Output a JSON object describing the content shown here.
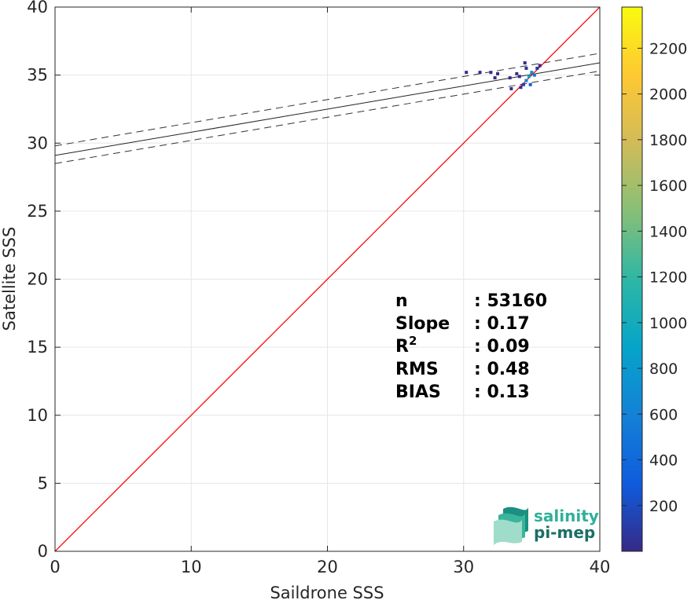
{
  "chart_data": {
    "type": "heatmap",
    "xlabel": "Saildrone SSS",
    "ylabel": "Satellite SSS",
    "xlim": [
      0,
      40
    ],
    "ylim": [
      0,
      40
    ],
    "xticks": [
      "0",
      "10",
      "20",
      "30",
      "40"
    ],
    "yticks": [
      "0",
      "5",
      "10",
      "15",
      "20",
      "25",
      "30",
      "35",
      "40"
    ],
    "grid": true,
    "identity_line": {
      "x": [
        0,
        40
      ],
      "y": [
        0,
        40
      ],
      "color": "#ff0000"
    },
    "regression_line": {
      "x": [
        0,
        40
      ],
      "y": [
        29.1,
        35.9
      ],
      "color": "#222222"
    },
    "confidence_lines": [
      {
        "x": [
          0,
          40
        ],
        "y": [
          29.8,
          36.6
        ]
      },
      {
        "x": [
          0,
          40
        ],
        "y": [
          28.5,
          35.3
        ]
      }
    ],
    "density_points": [
      {
        "x": 34.8,
        "y": 34.9,
        "count": 900
      },
      {
        "x": 35.0,
        "y": 35.2,
        "count": 700
      },
      {
        "x": 34.6,
        "y": 34.6,
        "count": 600
      },
      {
        "x": 35.2,
        "y": 35.0,
        "count": 500
      },
      {
        "x": 34.9,
        "y": 34.3,
        "count": 300
      },
      {
        "x": 34.4,
        "y": 34.3,
        "count": 150
      },
      {
        "x": 34.2,
        "y": 34.1,
        "count": 60
      },
      {
        "x": 35.4,
        "y": 35.5,
        "count": 120
      },
      {
        "x": 34.6,
        "y": 35.5,
        "count": 40
      },
      {
        "x": 34.5,
        "y": 35.9,
        "count": 20
      },
      {
        "x": 34.1,
        "y": 34.9,
        "count": 30
      },
      {
        "x": 33.9,
        "y": 35.1,
        "count": 15
      },
      {
        "x": 35.6,
        "y": 35.7,
        "count": 25
      },
      {
        "x": 33.5,
        "y": 34.0,
        "count": 10
      },
      {
        "x": 32.5,
        "y": 35.1,
        "count": 8
      },
      {
        "x": 32.0,
        "y": 35.2,
        "count": 5
      },
      {
        "x": 31.2,
        "y": 35.2,
        "count": 4
      },
      {
        "x": 30.2,
        "y": 35.2,
        "count": 3
      },
      {
        "x": 32.3,
        "y": 34.8,
        "count": 4
      },
      {
        "x": 33.4,
        "y": 34.8,
        "count": 12
      }
    ],
    "colorbar": {
      "min": 0,
      "max": 2380,
      "ticks": [
        "200",
        "400",
        "600",
        "800",
        "1000",
        "1200",
        "1400",
        "1600",
        "1800",
        "2000",
        "2200"
      ],
      "colormap": [
        "#352a87",
        "#0f5cdd",
        "#1481d6",
        "#06a4ca",
        "#2eb7a4",
        "#87bf77",
        "#d1bb59",
        "#fec832",
        "#f9fb0e"
      ]
    },
    "stats": [
      {
        "label": "n",
        "value": ": 53160"
      },
      {
        "label": "Slope",
        "value": ": 0.17"
      },
      {
        "label": "R",
        "sup": "2",
        "value": ": 0.09"
      },
      {
        "label": "RMS",
        "value": ": 0.48"
      },
      {
        "label": "BIAS",
        "value": ": 0.13"
      }
    ]
  },
  "logo": {
    "line1": "salinity",
    "line2": "pi-mep",
    "color1": "#2eb09a",
    "color2": "#1b6e66"
  }
}
